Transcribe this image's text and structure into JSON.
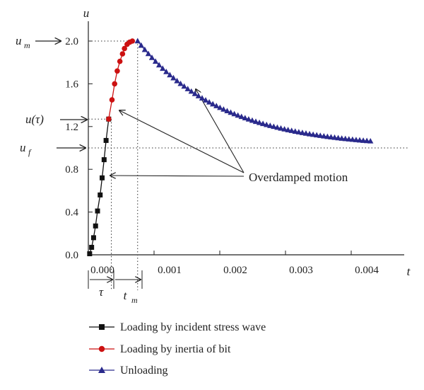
{
  "chart_data": {
    "type": "line",
    "xlabel": "t",
    "ylabel": "u",
    "xlim": [
      0,
      0.0045
    ],
    "ylim": [
      0,
      2.05
    ],
    "x_ticks": [
      "0.000",
      "0.001",
      "0.002",
      "0.003",
      "0.004"
    ],
    "y_ticks": [
      "0.0",
      "0.4",
      "0.8",
      "1.2",
      "1.6",
      "2.0"
    ],
    "x_tick_values": [
      0,
      0.001,
      0.002,
      0.003,
      0.004
    ],
    "y_tick_values": [
      0,
      0.4,
      0.8,
      1.2,
      1.6,
      2.0
    ],
    "series": [
      {
        "name": "Loading by incident stress wave",
        "marker": "square",
        "color": "#111111",
        "points": [
          [
            2e-05,
            0.01
          ],
          [
            5e-05,
            0.07
          ],
          [
            8e-05,
            0.16
          ],
          [
            0.00011,
            0.27
          ],
          [
            0.00014,
            0.41
          ],
          [
            0.00018,
            0.56
          ],
          [
            0.00021,
            0.72
          ],
          [
            0.00024,
            0.89
          ],
          [
            0.00027,
            1.07
          ],
          [
            0.00031,
            1.27
          ]
        ]
      },
      {
        "name": "Loading by inertia of bit",
        "marker": "circle",
        "color": "#cc1111",
        "points": [
          [
            0.00031,
            1.27
          ],
          [
            0.00036,
            1.45
          ],
          [
            0.0004,
            1.6
          ],
          [
            0.00044,
            1.72
          ],
          [
            0.00048,
            1.81
          ],
          [
            0.00052,
            1.88
          ],
          [
            0.00055,
            1.93
          ],
          [
            0.00059,
            1.97
          ],
          [
            0.00063,
            1.99
          ],
          [
            0.00067,
            2.0
          ]
        ]
      },
      {
        "name": "Unloading",
        "marker": "triangle",
        "color": "#2a2a8c",
        "points": []
      }
    ],
    "unloading_curve": {
      "x_start": 0.00075,
      "x_end": 0.0043,
      "step": 5.45e-05,
      "peak_value": 2.0,
      "asymptote": 1.0,
      "rate": 780
    },
    "reference_lines": {
      "u_m": 2.0,
      "u_tau": 1.27,
      "u_f": 1.0,
      "tau": 0.00035,
      "t_m": 0.00075
    },
    "annotations": {
      "overdamped": "Overdamped motion",
      "um_label": "u",
      "um_sub": "m",
      "utau_label": "u(τ)",
      "uf_label": "u",
      "uf_sub": "f",
      "tau_label": "τ",
      "tm_label": "t",
      "tm_sub": "m"
    },
    "legend_position": "bottom",
    "grid": false
  }
}
